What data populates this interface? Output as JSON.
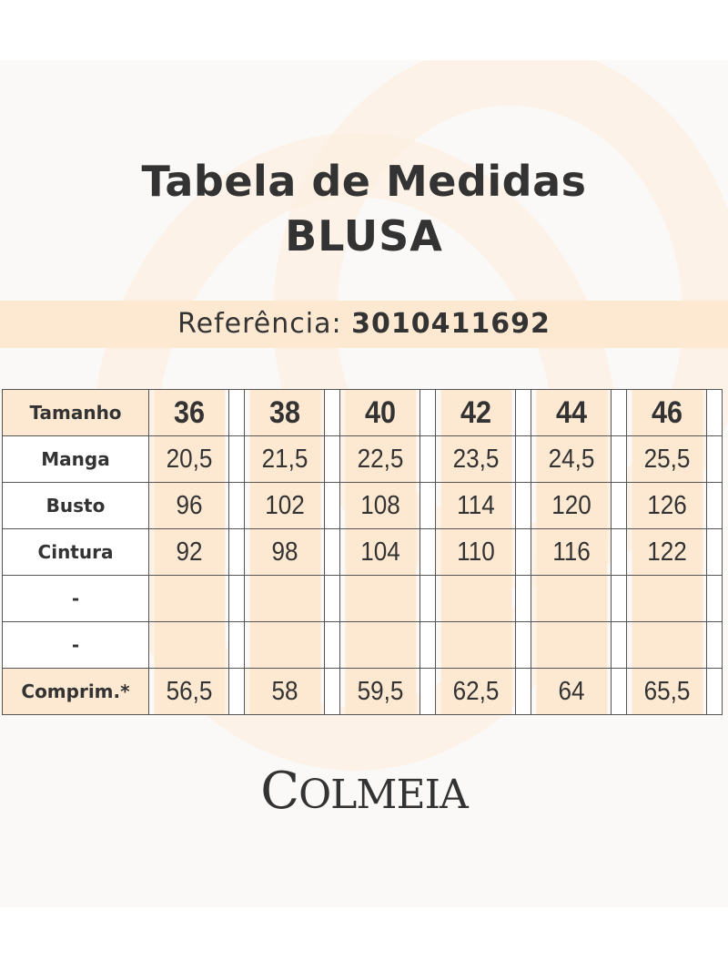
{
  "title": "Tabela de Medidas",
  "subtitle": "BLUSA",
  "reference": {
    "label": "Referência:",
    "value": "3010411692"
  },
  "table": {
    "header": {
      "label": "Tamanho",
      "sizes": [
        "36",
        "38",
        "40",
        "42",
        "44",
        "46"
      ]
    },
    "rows": [
      {
        "label": "Manga",
        "values": [
          "20,5",
          "21,5",
          "22,5",
          "23,5",
          "24,5",
          "25,5"
        ]
      },
      {
        "label": "Busto",
        "values": [
          "96",
          "102",
          "108",
          "114",
          "120",
          "126"
        ]
      },
      {
        "label": "Cintura",
        "values": [
          "92",
          "98",
          "104",
          "110",
          "116",
          "122"
        ]
      },
      {
        "label": "-",
        "values": [
          "",
          "",
          "",
          "",
          "",
          ""
        ]
      },
      {
        "label": "-",
        "values": [
          "",
          "",
          "",
          "",
          "",
          ""
        ]
      },
      {
        "label": "Comprim.*",
        "values": [
          "56,5",
          "58",
          "59,5",
          "62,5",
          "64",
          "65,5"
        ]
      }
    ]
  },
  "brand": {
    "logo_text": "COLMEIA"
  },
  "colors": {
    "highlight": "#fde9d2",
    "text": "#333333"
  }
}
